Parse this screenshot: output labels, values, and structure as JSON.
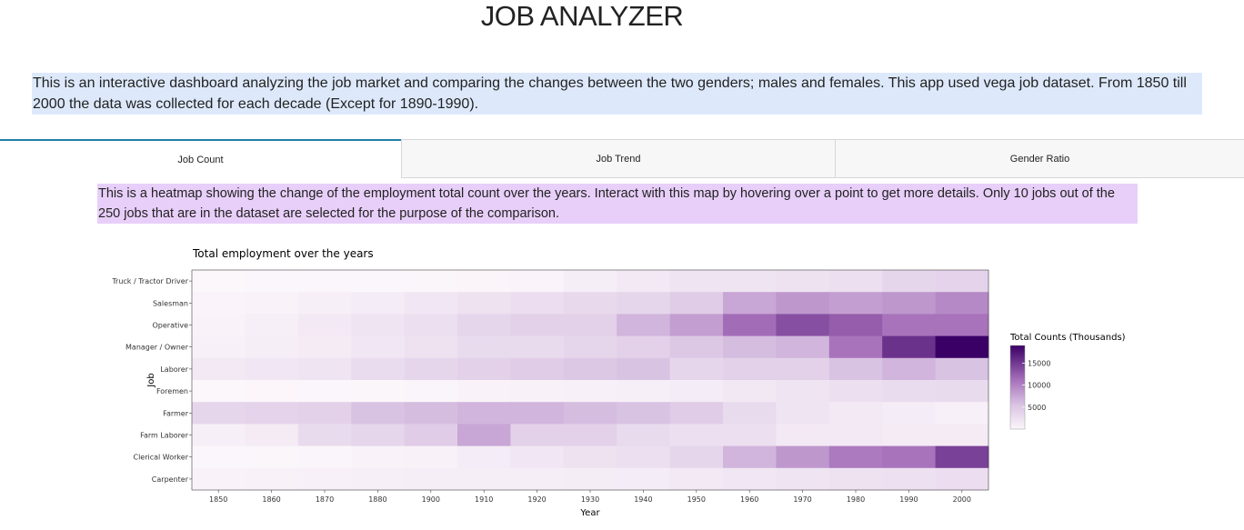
{
  "header": {
    "title": "JOB ANALYZER"
  },
  "intro": {
    "text": "This is an interactive dashboard analyzing the job market and comparing the changes between the two genders; males and females. This app used vega job dataset. From 1850 till 2000 the data was collected for each decade (Except for 1890-1990)."
  },
  "tabs": [
    {
      "label": "Job Count",
      "active": true
    },
    {
      "label": "Job Trend",
      "active": false
    },
    {
      "label": "Gender Ratio",
      "active": false
    }
  ],
  "panel": {
    "description": "This is a heatmap showing the change of the employment total count over the years. Interact with this map by hovering over a point to get more details. Only 10 jobs out of the 250 jobs that are in the dataset are selected for the purpose of the comparison."
  },
  "colors": {
    "scale_low": "#fcf7fb",
    "scale_high": "#3a0066",
    "tab_accent": "#1f7ea6",
    "intro_bg": "#dde9fb",
    "desc_bg": "#e8cff9"
  },
  "chart_data": {
    "type": "heatmap",
    "title": "Total employment over the years",
    "xlabel": "Year",
    "ylabel": "Job",
    "x": [
      1850,
      1860,
      1870,
      1880,
      1900,
      1910,
      1920,
      1930,
      1940,
      1950,
      1960,
      1970,
      1980,
      1990,
      2000
    ],
    "x_ticks": [
      "1850",
      "1860",
      "1870",
      "1880",
      "1900",
      "1910",
      "1920",
      "1930",
      "1940",
      "1950",
      "1960",
      "1970",
      "1980",
      "1990",
      "2000"
    ],
    "y": [
      "Truck / Tractor Driver",
      "Salesman",
      "Operative",
      "Manager / Owner",
      "Laborer",
      "Foremen",
      "Farmer",
      "Farm Laborer",
      "Clerical Worker",
      "Carpenter"
    ],
    "z": [
      [
        50,
        100,
        100,
        100,
        150,
        200,
        300,
        900,
        1500,
        2000,
        2000,
        2200,
        2500,
        3500,
        3800
      ],
      [
        300,
        500,
        800,
        1200,
        1800,
        2200,
        2600,
        3200,
        3500,
        4500,
        7500,
        8500,
        8000,
        8500,
        9500
      ],
      [
        400,
        800,
        1500,
        2000,
        2500,
        3500,
        4000,
        4000,
        6500,
        8000,
        11500,
        13500,
        12500,
        11000,
        11000
      ],
      [
        700,
        1000,
        1300,
        1700,
        2200,
        3000,
        3000,
        3500,
        4000,
        5000,
        6000,
        6500,
        11000,
        15500,
        19000
      ],
      [
        1500,
        1700,
        2000,
        2800,
        3500,
        4000,
        4500,
        5000,
        5500,
        3500,
        4000,
        4000,
        5500,
        6500,
        5500
      ],
      [
        50,
        60,
        80,
        150,
        250,
        400,
        600,
        700,
        800,
        1200,
        1600,
        2000,
        2500,
        2800,
        3000
      ],
      [
        3500,
        3800,
        4000,
        5500,
        6000,
        6500,
        6500,
        6000,
        5500,
        4500,
        3000,
        2000,
        1500,
        1200,
        700
      ],
      [
        800,
        1300,
        3000,
        3500,
        4500,
        7500,
        4000,
        4000,
        3000,
        2500,
        2500,
        1500,
        1500,
        1300,
        1300
      ],
      [
        100,
        150,
        250,
        400,
        600,
        1200,
        1800,
        2200,
        2500,
        3500,
        6500,
        8500,
        10500,
        11000,
        14500
      ],
      [
        500,
        600,
        700,
        800,
        900,
        1000,
        1000,
        1100,
        1200,
        1500,
        1800,
        2000,
        2200,
        2400,
        2600
      ]
    ],
    "colorbar": {
      "title": "Total Counts (Thousands)",
      "ticks": [
        "5000",
        "10000",
        "15000"
      ],
      "tick_values": [
        5000,
        10000,
        15000
      ],
      "range": [
        0,
        19000
      ]
    }
  }
}
